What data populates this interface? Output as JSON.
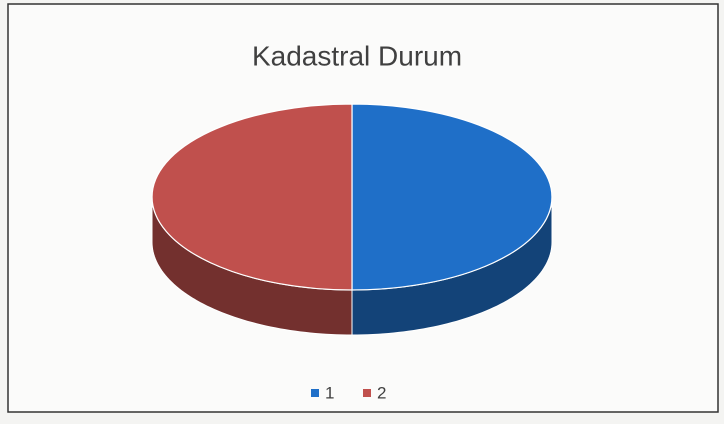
{
  "chart_data": {
    "type": "pie",
    "title": "Kadastral Durum",
    "categories": [
      "1",
      "2"
    ],
    "values": [
      50,
      50
    ],
    "colors": [
      "#1f6fc8",
      "#c0504d"
    ],
    "legend": "bottom"
  }
}
